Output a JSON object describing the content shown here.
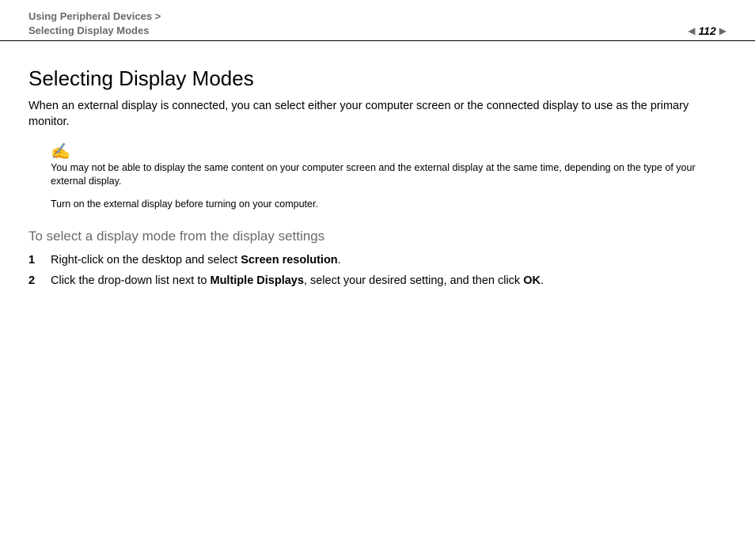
{
  "header": {
    "breadcrumb_line1": "Using Peripheral Devices >",
    "breadcrumb_line2": "Selecting Display Modes",
    "page_number": "112"
  },
  "title": "Selecting Display Modes",
  "intro": "When an external display is connected, you can select either your computer screen or the connected display to use as the primary monitor.",
  "note": {
    "icon_glyph": "✍",
    "paragraph1": "You may not be able to display the same content on your computer screen and the external display at the same time, depending on the type of your external display.",
    "paragraph2": "Turn on the external display before turning on your computer."
  },
  "subhead": "To select a display mode from the display settings",
  "steps": [
    {
      "num": "1",
      "pre": "Right-click on the desktop and select ",
      "bold1": "Screen resolution",
      "mid": ".",
      "bold2": "",
      "post": ""
    },
    {
      "num": "2",
      "pre": "Click the drop-down list next to ",
      "bold1": "Multiple Displays",
      "mid": ", select your desired setting, and then click ",
      "bold2": "OK",
      "post": "."
    }
  ],
  "colors": {
    "breadcrumb_grey": "#6a6a6a",
    "note_icon_green": "#3b7a3b",
    "text_black": "#000000",
    "background": "#ffffff"
  }
}
